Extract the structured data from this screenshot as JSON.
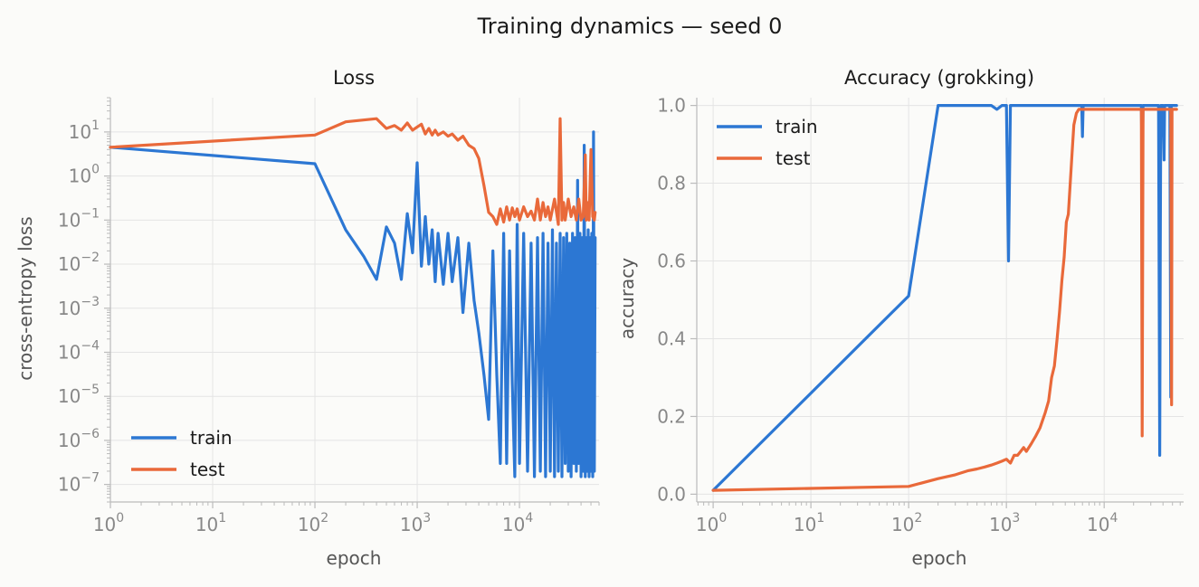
{
  "title": "Training dynamics — seed 0",
  "colors": {
    "train": "#2c77d3",
    "test": "#e9693a",
    "grid": "#e4e4e4",
    "spine": "#bbbbbb"
  },
  "chart_data": [
    {
      "type": "line",
      "title": "Loss",
      "xlabel": "epoch",
      "ylabel": "cross-entropy loss",
      "xscale": "log",
      "yscale": "log",
      "xlim": [
        1,
        60000
      ],
      "ylim": [
        4e-08,
        60
      ],
      "legend": "lower-left",
      "grid": true,
      "xticks": [
        {
          "v": 1,
          "b": "10",
          "e": "0"
        },
        {
          "v": 10,
          "b": "10",
          "e": "1"
        },
        {
          "v": 100,
          "b": "10",
          "e": "2"
        },
        {
          "v": 1000,
          "b": "10",
          "e": "3"
        },
        {
          "v": 10000,
          "b": "10",
          "e": "4"
        }
      ],
      "yticks": [
        {
          "v": 10,
          "b": "10",
          "e": "1"
        },
        {
          "v": 1,
          "b": "10",
          "e": "0"
        },
        {
          "v": 0.1,
          "b": "10",
          "e": "−1"
        },
        {
          "v": 0.01,
          "b": "10",
          "e": "−2"
        },
        {
          "v": 0.001,
          "b": "10",
          "e": "−3"
        },
        {
          "v": 0.0001,
          "b": "10",
          "e": "−4"
        },
        {
          "v": 1e-05,
          "b": "10",
          "e": "−5"
        },
        {
          "v": 1e-06,
          "b": "10",
          "e": "−6"
        },
        {
          "v": 1e-07,
          "b": "10",
          "e": "−7"
        }
      ],
      "series": [
        {
          "name": "train",
          "color": "#2c77d3",
          "x": [
            1,
            100,
            200,
            300,
            400,
            500,
            600,
            700,
            800,
            900,
            1000,
            1100,
            1200,
            1300,
            1400,
            1500,
            1600,
            1800,
            2000,
            2200,
            2500,
            2800,
            3200,
            3600,
            4000,
            4500,
            5000,
            5500,
            6000,
            6500,
            7000,
            7500,
            8000,
            8500,
            9000,
            9500,
            10000,
            11000,
            12000,
            13000,
            14000,
            15000,
            16000,
            17000,
            18000,
            19000,
            20000,
            21000,
            22000,
            23000,
            24000,
            25000,
            26000,
            27000,
            28000,
            29000,
            30000,
            31000,
            32000,
            33000,
            34000,
            35000,
            36000,
            37000,
            38000,
            39000,
            40000,
            41000,
            42000,
            43000,
            44000,
            45000,
            46000,
            47000,
            48000,
            49000,
            50000,
            51000,
            52000,
            53000,
            54000,
            55000
          ],
          "y": [
            4.5,
            1.9,
            0.06,
            0.015,
            0.0045,
            0.07,
            0.03,
            0.0045,
            0.14,
            0.018,
            2.0,
            0.009,
            0.12,
            0.01,
            0.06,
            0.004,
            0.05,
            0.0035,
            0.05,
            0.004,
            0.04,
            0.0008,
            0.03,
            0.0015,
            0.00028,
            3e-05,
            3e-06,
            0.02,
            3e-05,
            3e-07,
            0.05,
            3e-07,
            0.02,
            2e-05,
            1.5e-07,
            0.08,
            3e-07,
            0.05,
            2e-07,
            0.03,
            1.5e-07,
            0.04,
            2e-07,
            0.05,
            1.5e-07,
            0.03,
            2e-07,
            0.06,
            1.5e-07,
            0.03,
            2e-07,
            0.05,
            1.5e-07,
            0.04,
            3e-07,
            0.05,
            2e-07,
            0.03,
            1.5e-07,
            0.05,
            3e-07,
            0.04,
            2e-07,
            0.8,
            3e-07,
            0.05,
            1.5e-07,
            0.04,
            2e-07,
            5,
            1.5e-07,
            0.04,
            2e-07,
            0.06,
            1.5e-07,
            0.04,
            2e-07,
            0.05,
            1.5e-07,
            10,
            2e-07,
            0.04
          ]
        },
        {
          "name": "test",
          "color": "#e9693a",
          "x": [
            1,
            100,
            200,
            400,
            500,
            600,
            700,
            800,
            900,
            1000,
            1100,
            1200,
            1300,
            1400,
            1500,
            1600,
            1800,
            2000,
            2200,
            2500,
            2800,
            3200,
            3600,
            4000,
            4500,
            5000,
            5500,
            6000,
            6500,
            7000,
            7500,
            8000,
            8500,
            9000,
            9500,
            10000,
            11000,
            12000,
            13000,
            14000,
            15000,
            16000,
            17000,
            18000,
            19000,
            20000,
            22000,
            24000,
            25000,
            26000,
            27000,
            28000,
            30000,
            32000,
            34000,
            36000,
            38000,
            40000,
            42000,
            44000,
            45000,
            46000,
            48000,
            50000,
            52000,
            54000,
            55000
          ],
          "y": [
            4.5,
            8.5,
            17,
            20,
            12,
            14,
            11,
            16,
            11,
            13,
            15,
            9,
            12,
            8.5,
            11,
            8.5,
            10,
            8,
            9,
            6.5,
            8,
            5,
            4.2,
            2.5,
            0.6,
            0.15,
            0.12,
            0.08,
            0.18,
            0.09,
            0.2,
            0.1,
            0.19,
            0.12,
            0.18,
            0.1,
            0.2,
            0.12,
            0.16,
            0.1,
            0.3,
            0.1,
            0.25,
            0.12,
            0.2,
            0.1,
            0.3,
            0.08,
            20,
            0.1,
            0.25,
            0.1,
            0.3,
            0.12,
            0.2,
            0.1,
            0.3,
            0.1,
            0.12,
            3,
            0.1,
            0.25,
            0.1,
            4,
            0.12,
            0.1,
            0.15
          ]
        }
      ]
    },
    {
      "type": "line",
      "title": "Accuracy (grokking)",
      "xlabel": "epoch",
      "ylabel": "accuracy",
      "xscale": "log",
      "yscale": "linear",
      "xlim": [
        0.68,
        65000
      ],
      "ylim": [
        -0.02,
        1.02
      ],
      "legend": "upper-left",
      "grid": true,
      "xticks": [
        {
          "v": 1,
          "b": "10",
          "e": "0"
        },
        {
          "v": 10,
          "b": "10",
          "e": "1"
        },
        {
          "v": 100,
          "b": "10",
          "e": "2"
        },
        {
          "v": 1000,
          "b": "10",
          "e": "3"
        },
        {
          "v": 10000,
          "b": "10",
          "e": "4"
        }
      ],
      "yticks": [
        {
          "v": 0.0,
          "t": "0.0"
        },
        {
          "v": 0.2,
          "t": "0.2"
        },
        {
          "v": 0.4,
          "t": "0.4"
        },
        {
          "v": 0.6,
          "t": "0.6"
        },
        {
          "v": 0.8,
          "t": "0.8"
        },
        {
          "v": 1.0,
          "t": "1.0"
        }
      ],
      "series": [
        {
          "name": "train",
          "color": "#2c77d3",
          "x": [
            1,
            100,
            200,
            400,
            700,
            800,
            900,
            1000,
            1050,
            1100,
            1150,
            1200,
            2000,
            5000,
            5900,
            6000,
            6100,
            10000,
            24000,
            24500,
            25000,
            36000,
            37000,
            37500,
            38000,
            40000,
            41000,
            41500,
            42000,
            47000,
            48000,
            48500,
            49000,
            55000
          ],
          "y": [
            0.01,
            0.51,
            1.0,
            1.0,
            1.0,
            0.99,
            1.0,
            1.0,
            0.6,
            1.0,
            1.0,
            1.0,
            1.0,
            1.0,
            1.0,
            0.92,
            1.0,
            1.0,
            1.0,
            0.84,
            1.0,
            1.0,
            0.1,
            0.62,
            1.0,
            1.0,
            0.86,
            1.0,
            1.0,
            1.0,
            0.25,
            1.0,
            1.0,
            1.0
          ]
        },
        {
          "name": "test",
          "color": "#e9693a",
          "x": [
            1,
            100,
            200,
            300,
            400,
            500,
            600,
            700,
            800,
            900,
            1000,
            1100,
            1200,
            1300,
            1400,
            1500,
            1600,
            1800,
            2000,
            2200,
            2500,
            2700,
            2900,
            3100,
            3300,
            3500,
            3700,
            3900,
            4100,
            4300,
            4500,
            4700,
            4900,
            5200,
            5500,
            6000,
            7000,
            8000,
            10000,
            14000,
            18000,
            22000,
            24000,
            24500,
            25000,
            30000,
            35000,
            40000,
            45000,
            48000,
            49000,
            49500,
            50000,
            55000
          ],
          "y": [
            0.01,
            0.02,
            0.04,
            0.05,
            0.06,
            0.065,
            0.07,
            0.075,
            0.08,
            0.085,
            0.09,
            0.08,
            0.1,
            0.1,
            0.11,
            0.12,
            0.11,
            0.13,
            0.15,
            0.17,
            0.21,
            0.24,
            0.3,
            0.33,
            0.4,
            0.47,
            0.55,
            0.61,
            0.7,
            0.72,
            0.8,
            0.88,
            0.95,
            0.98,
            0.99,
            0.99,
            0.99,
            0.99,
            0.99,
            0.99,
            0.99,
            0.99,
            0.99,
            0.15,
            0.99,
            0.99,
            0.99,
            0.99,
            0.99,
            0.99,
            0.23,
            0.99,
            0.99,
            0.99
          ]
        }
      ]
    }
  ]
}
